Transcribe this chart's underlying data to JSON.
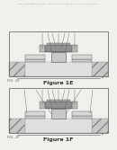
{
  "bg_color": "#f0f0ec",
  "header_text": "Patent Application Publication    May 10, 2016  Sheet 7 of 17    US 2016/0133614 A1",
  "fig1_label": "Figure 1E",
  "fig2_label": "Figure 1F",
  "fig1_fid": "FIG. 1E",
  "fig2_fid": "FIG. 1F",
  "border_color": "#555555",
  "hatch_color": "#999999",
  "substrate_fill": "#d8d8d8",
  "fin_fill": "#c8c8c8",
  "gate_fill": "#a0a0a0",
  "spacer_fill": "#c0c0c0",
  "ild_fill": "#e4e4e4",
  "white_fill": "#f8f8f8",
  "line_color": "#555555",
  "ann_color": "#666666"
}
